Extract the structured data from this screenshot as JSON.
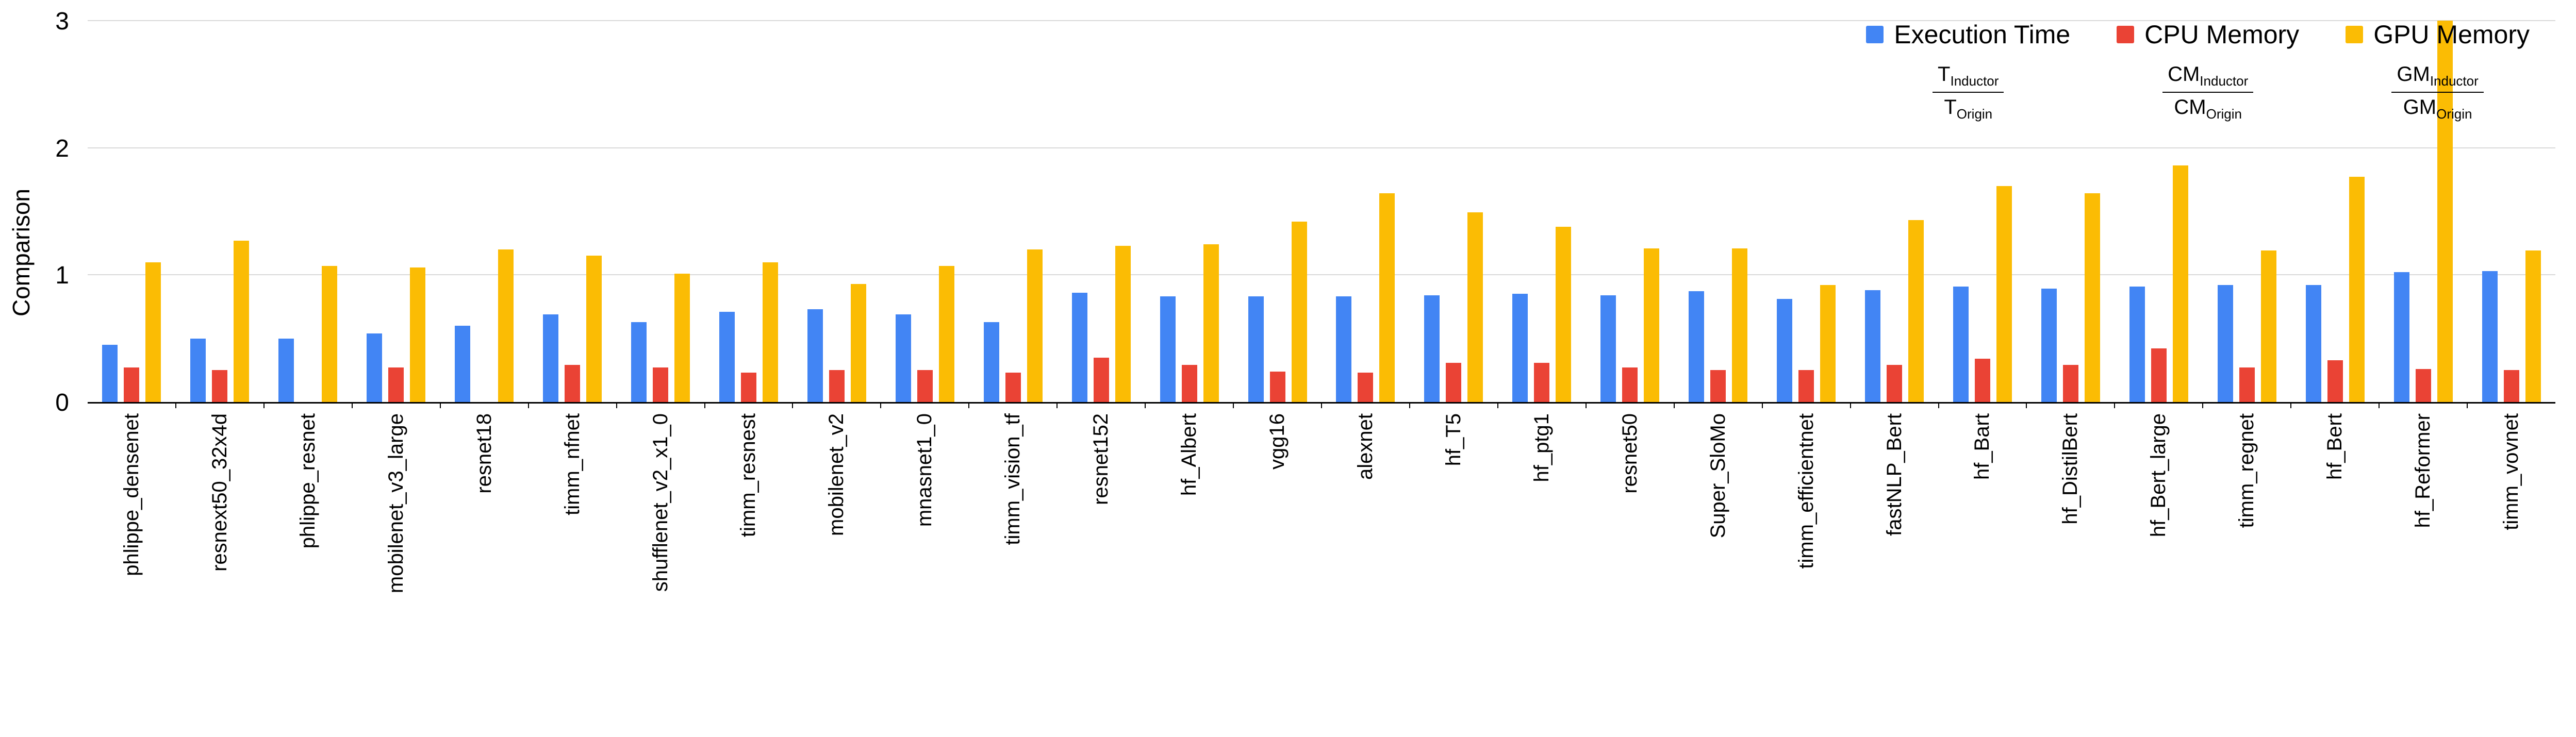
{
  "colors": {
    "background": "#ffffff",
    "grid": "#d9d9d9",
    "axis": "#000000",
    "text": "#000000"
  },
  "chart_data": {
    "type": "bar",
    "title": "",
    "xlabel": "",
    "ylabel": "Comparison",
    "ylim": [
      0,
      3
    ],
    "yticks": [
      "0",
      "1",
      "2",
      "3"
    ],
    "grid": "horizontal",
    "legend_position": "top-right",
    "categories": [
      "phlippe_densenet",
      "resnext50_32x4d",
      "phlippe_resnet",
      "mobilenet_v3_large",
      "resnet18",
      "timm_nfnet",
      "shufflenet_v2_x1_0",
      "timm_resnest",
      "mobilenet_v2",
      "mnasnet1_0",
      "timm_vision_tf",
      "resnet152",
      "hf_Albert",
      "vgg16",
      "alexnet",
      "hf_T5",
      "hf_ptg1",
      "resnet50",
      "Super_SloMo",
      "timm_efficientnet",
      "fastNLP_Bert",
      "hf_Bart",
      "hf_DistilBert",
      "hf_Bert_large",
      "timm_regnet",
      "hf_Bert",
      "hf_Reformer",
      "timm_vovnet"
    ],
    "series": [
      {
        "name": "Execution Time",
        "color": "#4285F4",
        "values": [
          0.45,
          0.5,
          0.5,
          0.54,
          0.6,
          0.69,
          0.63,
          0.71,
          0.73,
          0.69,
          0.63,
          0.86,
          0.83,
          0.83,
          0.83,
          0.84,
          0.85,
          0.84,
          0.87,
          0.81,
          0.88,
          0.91,
          0.89,
          0.91,
          0.92,
          0.92,
          1.02,
          1.03
        ]
      },
      {
        "name": "CPU Memory",
        "color": "#EA4335",
        "values": [
          0.27,
          0.25,
          0,
          0.27,
          0,
          0.29,
          0.27,
          0.23,
          0.25,
          0.25,
          0.23,
          0.35,
          0.29,
          0.24,
          0.23,
          0.31,
          0.31,
          0.27,
          0.25,
          0.25,
          0.29,
          0.34,
          0.29,
          0.42,
          0.27,
          0.33,
          0.26,
          0.25
        ]
      },
      {
        "name": "GPU Memory",
        "color": "#FBBC04",
        "values": [
          1.1,
          1.27,
          1.07,
          1.06,
          1.2,
          1.15,
          1.01,
          1.1,
          0.93,
          1.07,
          1.2,
          1.23,
          1.24,
          1.42,
          1.64,
          1.49,
          1.38,
          1.21,
          1.21,
          0.92,
          1.43,
          1.7,
          1.64,
          1.86,
          1.19,
          1.77,
          3.0,
          1.19
        ]
      }
    ],
    "annotations": [
      {
        "num_base": "T",
        "num_sub": "Inductor",
        "den_base": "T",
        "den_sub": "Origin"
      },
      {
        "num_base": "CM",
        "num_sub": "Inductor",
        "den_base": "CM",
        "den_sub": "Origin"
      },
      {
        "num_base": "GM",
        "num_sub": "Inductor",
        "den_base": "GM",
        "den_sub": "Origin"
      }
    ]
  }
}
